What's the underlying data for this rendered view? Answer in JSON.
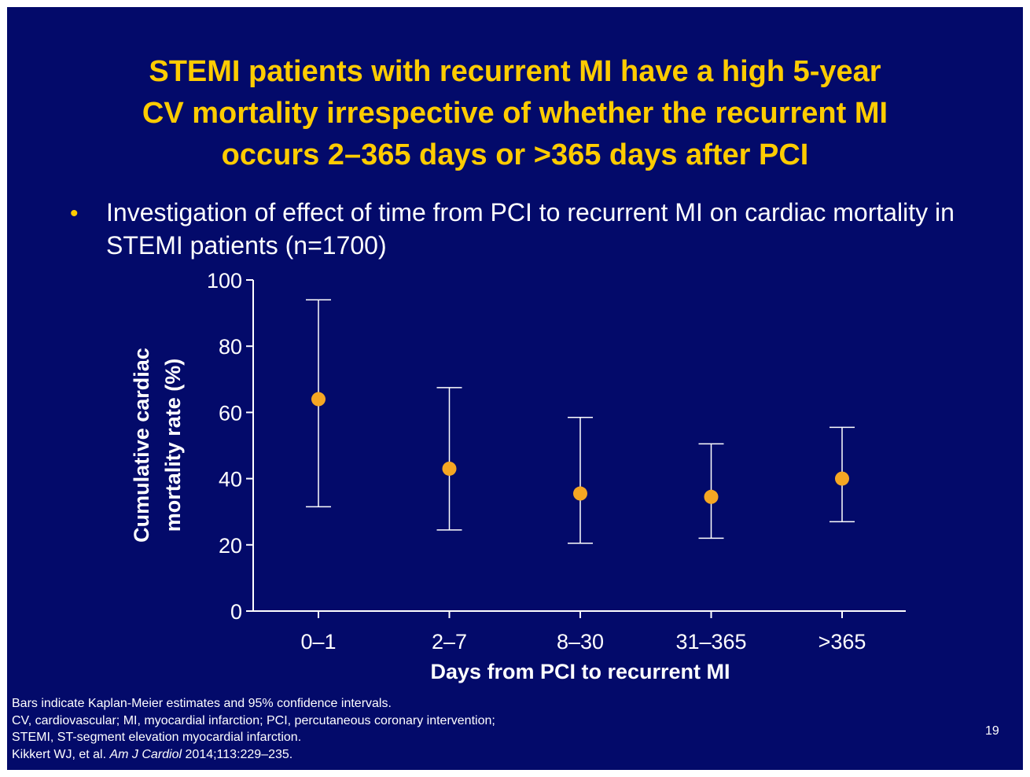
{
  "slide": {
    "title_lines": [
      "STEMI patients with recurrent MI have a high 5-year",
      "CV mortality irrespective of whether the recurrent MI",
      "occurs 2–365 days or >365 days after PCI"
    ],
    "bullet_symbol": "•",
    "bullet_text": "Investigation of effect of time from PCI to recurrent MI on cardiac mortality in STEMI patients (n=1700)",
    "footnotes": [
      "Bars indicate Kaplan-Meier estimates and 95% confidence intervals.",
      "CV, cardiovascular; MI, myocardial infarction; PCI, percutaneous coronary intervention;",
      "STEMI, ST-segment elevation myocardial infarction."
    ],
    "reference": {
      "authors": "Kikkert WJ, et al.",
      "journal": "Am J Cardiol",
      "details": "2014;113:229–235."
    },
    "page_number": "19",
    "colors": {
      "background": "#030a6a",
      "title": "#ffcc00",
      "text": "#ffffff",
      "marker": "#f5a623"
    }
  },
  "chart_data": {
    "type": "scatter",
    "xlabel": "Days from PCI to recurrent MI",
    "ylabel_lines": [
      "Cumulative cardiac",
      "mortality rate (%)"
    ],
    "categories": [
      "0–1",
      "2–7",
      "8–30",
      "31–365",
      ">365"
    ],
    "values": [
      64,
      43,
      35.5,
      34.5,
      40
    ],
    "ci_lower": [
      31.5,
      24.5,
      20.5,
      22,
      27
    ],
    "ci_upper": [
      94,
      67.5,
      58.5,
      50.5,
      55.5
    ],
    "ylim": [
      0,
      100
    ],
    "yticks": [
      0,
      20,
      40,
      60,
      80,
      100
    ],
    "grid": false,
    "legend": "none"
  }
}
